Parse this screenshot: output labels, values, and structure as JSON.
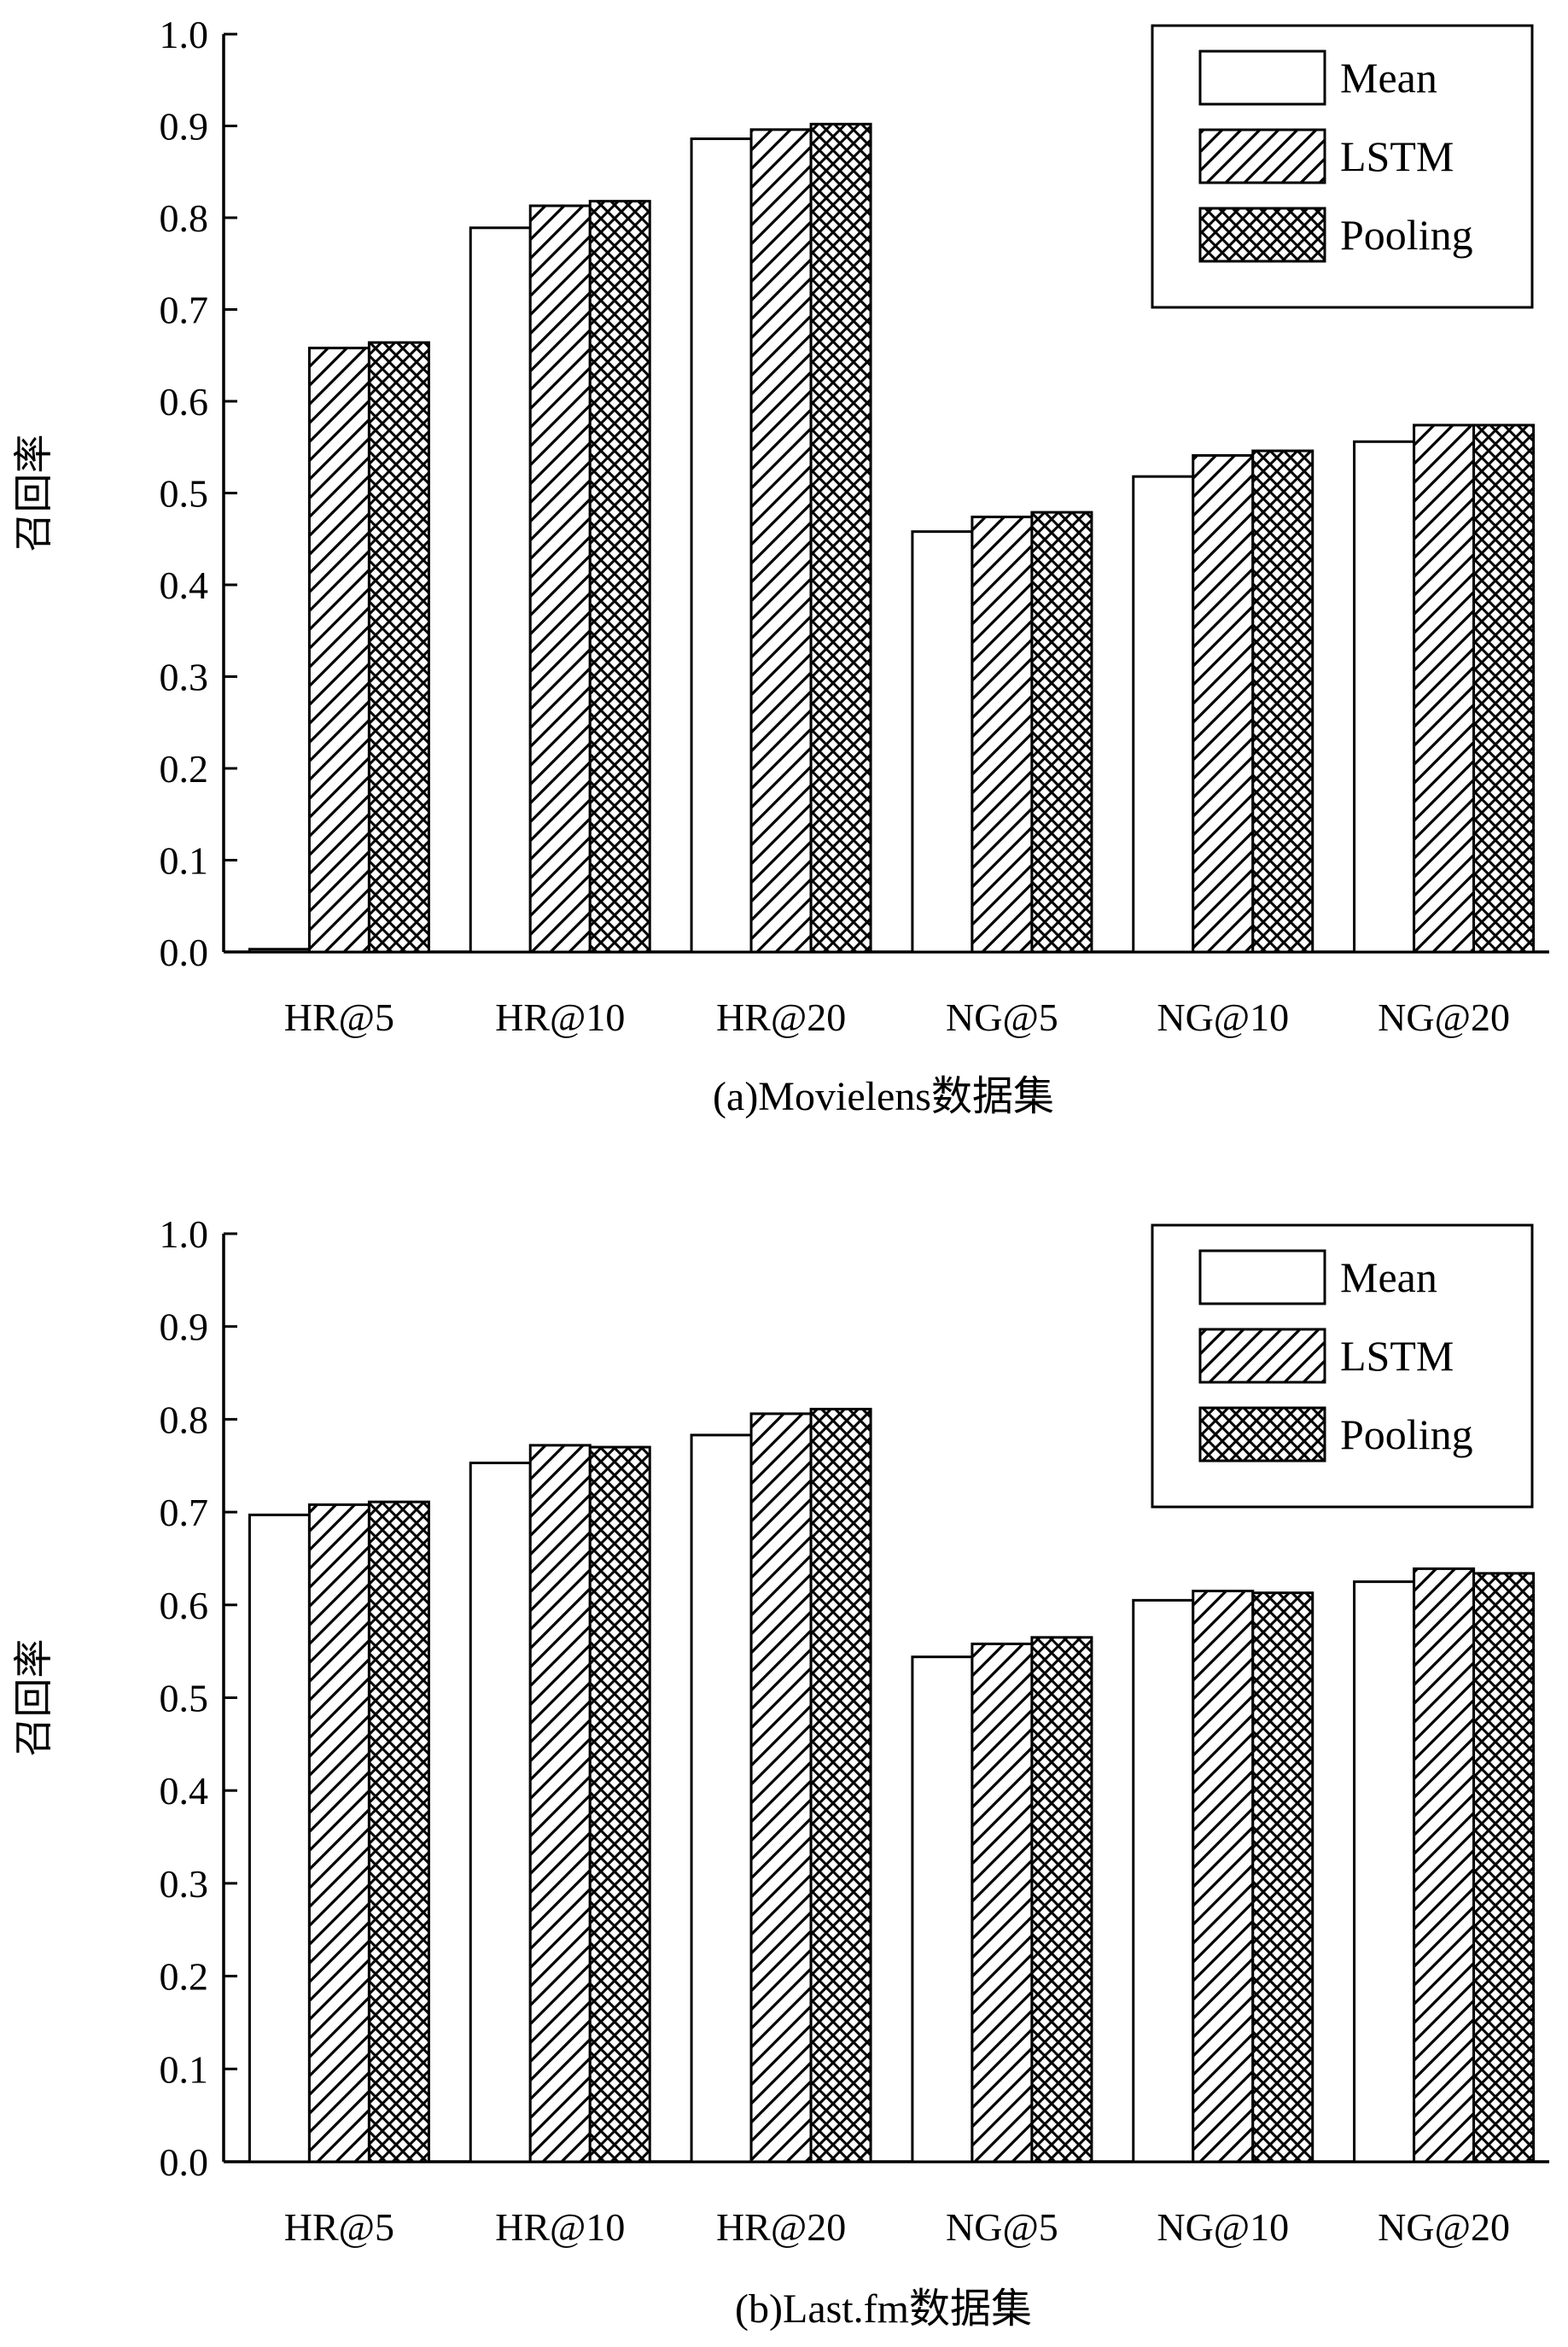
{
  "chart_data": [
    {
      "type": "bar",
      "caption": "(a)Movielens数据集",
      "ylabel": "召回率",
      "ylim": [
        0,
        1.0
      ],
      "yticks": [
        "0.0",
        "0.1",
        "0.2",
        "0.3",
        "0.4",
        "0.5",
        "0.6",
        "0.7",
        "0.8",
        "0.9",
        "1.0"
      ],
      "categories": [
        "HR@5",
        "HR@10",
        "HR@20",
        "NG@5",
        "NG@10",
        "NG@20"
      ],
      "legend_position": "top-right",
      "series": [
        {
          "name": "Mean",
          "pattern": "none",
          "values": [
            0.003,
            0.789,
            0.886,
            0.458,
            0.518,
            0.556
          ]
        },
        {
          "name": "LSTM",
          "pattern": "diagonal-hatch",
          "values": [
            0.658,
            0.813,
            0.896,
            0.474,
            0.541,
            0.574
          ]
        },
        {
          "name": "Pooling",
          "pattern": "crosshatch",
          "values": [
            0.664,
            0.818,
            0.902,
            0.479,
            0.546,
            0.574
          ]
        }
      ]
    },
    {
      "type": "bar",
      "caption": "(b)Last.fm数据集",
      "ylabel": "召回率",
      "ylim": [
        0,
        1.0
      ],
      "yticks": [
        "0.0",
        "0.1",
        "0.2",
        "0.3",
        "0.4",
        "0.5",
        "0.6",
        "0.7",
        "0.8",
        "0.9",
        "1.0"
      ],
      "categories": [
        "HR@5",
        "HR@10",
        "HR@20",
        "NG@5",
        "NG@10",
        "NG@20"
      ],
      "legend_position": "top-right",
      "series": [
        {
          "name": "Mean",
          "pattern": "none",
          "values": [
            0.697,
            0.753,
            0.783,
            0.544,
            0.605,
            0.625
          ]
        },
        {
          "name": "LSTM",
          "pattern": "diagonal-hatch",
          "values": [
            0.708,
            0.772,
            0.806,
            0.558,
            0.615,
            0.639
          ]
        },
        {
          "name": "Pooling",
          "pattern": "crosshatch",
          "values": [
            0.711,
            0.77,
            0.811,
            0.565,
            0.613,
            0.634
          ]
        }
      ]
    }
  ]
}
